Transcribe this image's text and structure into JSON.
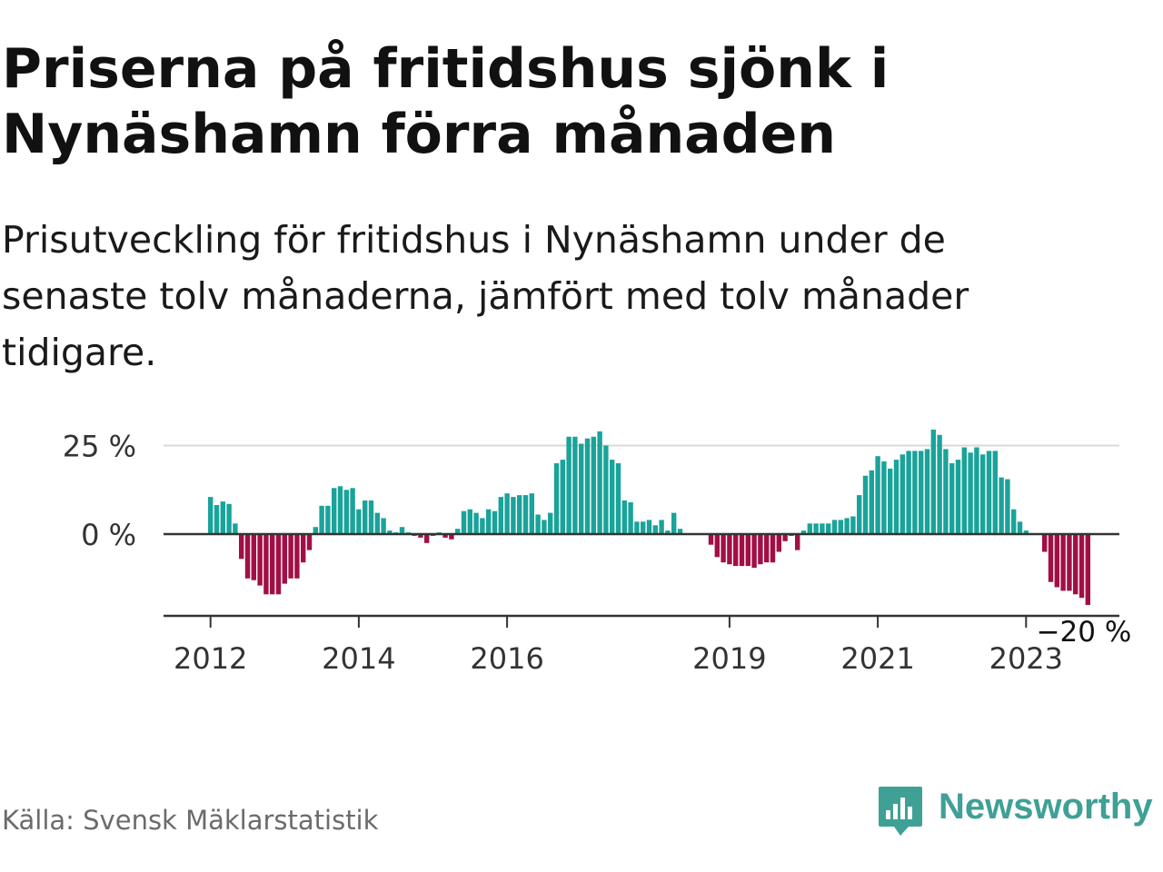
{
  "title": "Priserna på fritidshus sjönk i Nynäshamn förra månaden",
  "subtitle": "Prisutveckling för fritidshus i Nynäshamn under de senaste tolv månaderna, jämfört med tolv månader tidigare.",
  "source": "Källa: Svensk Mäklarstatistik",
  "brand": {
    "name": "Newsworthy",
    "icon": "newsworthy-logo-icon",
    "color": "#3fa096"
  },
  "colors": {
    "positive": "#1aa39a",
    "negative": "#a10f45",
    "gridline": "#d9d9d9",
    "axis": "#333333"
  },
  "chart_data": {
    "type": "bar",
    "title": "",
    "xlabel": "",
    "ylabel": "",
    "value_suffix": " %",
    "ylim": [
      -22,
      28
    ],
    "y_ticks": [
      {
        "value": 25,
        "label": "25 %"
      },
      {
        "value": 0,
        "label": "0 %"
      }
    ],
    "x_ticks": [
      {
        "index": 0,
        "label": "2012"
      },
      {
        "index": 24,
        "label": "2014"
      },
      {
        "index": 48,
        "label": "2016"
      },
      {
        "index": 84,
        "label": "2019"
      },
      {
        "index": 108,
        "label": "2021"
      },
      {
        "index": 132,
        "label": "2023"
      }
    ],
    "series": [
      {
        "name": "Prisutveckling",
        "values": [
          10.5,
          8.2,
          9.2,
          8.5,
          3.0,
          -7.0,
          -12.5,
          -13.0,
          -14.5,
          -17.0,
          -17.0,
          -17.0,
          -14.0,
          -12.5,
          -12.5,
          -8.0,
          -4.5,
          2.0,
          8.0,
          8.0,
          13.0,
          13.5,
          12.5,
          13.0,
          7.0,
          9.5,
          9.5,
          6.0,
          4.5,
          1.0,
          0.5,
          2.0,
          0.5,
          -0.5,
          -1.0,
          -2.5,
          -0.5,
          0.5,
          -1.0,
          -1.5,
          1.5,
          6.5,
          7.0,
          6.0,
          4.5,
          7.0,
          6.5,
          10.5,
          11.5,
          10.5,
          11.0,
          11.0,
          11.5,
          5.5,
          4.0,
          6.0,
          20.0,
          21.0,
          27.5,
          27.5,
          25.5,
          27.0,
          27.5,
          29.0,
          25.0,
          21.0,
          20.0,
          9.5,
          9.0,
          3.5,
          3.5,
          4.0,
          2.5,
          4.0,
          1.0,
          6.0,
          1.5,
          0.0,
          0.0,
          0.0,
          0.0,
          -3.0,
          -6.5,
          -8.0,
          -8.5,
          -9.0,
          -9.0,
          -9.0,
          -9.5,
          -8.5,
          -8.0,
          -8.0,
          -5.0,
          -2.0,
          -0.5,
          -4.5,
          1.0,
          3.0,
          3.0,
          3.0,
          3.0,
          4.0,
          4.0,
          4.5,
          5.0,
          11.0,
          16.5,
          18.0,
          22.0,
          20.5,
          18.5,
          21.0,
          22.5,
          23.5,
          23.5,
          23.5,
          24.0,
          29.5,
          28.0,
          24.0,
          20.0,
          21.0,
          24.5,
          23.0,
          24.5,
          22.5,
          23.5,
          23.5,
          16.0,
          15.5,
          7.0,
          3.5,
          1.0,
          0.0,
          0.0,
          -5.0,
          -13.5,
          -15.0,
          -16.0,
          -16.0,
          -17.0,
          -18.0,
          -20.0
        ]
      }
    ],
    "annotations": [
      {
        "index": 142,
        "label": "−20 %"
      }
    ]
  }
}
